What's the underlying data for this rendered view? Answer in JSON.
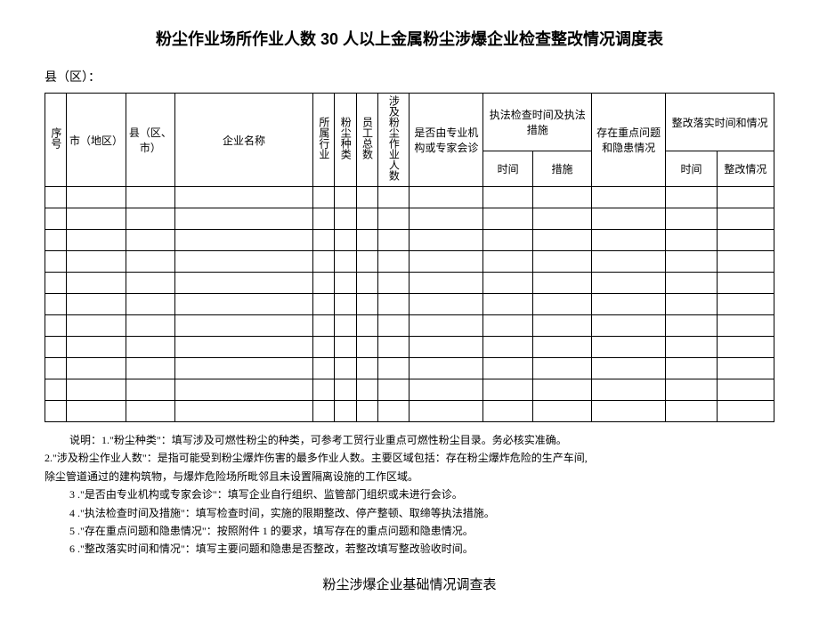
{
  "title": "粉尘作业场所作业人数 30 人以上金属粉尘涉爆企业检查整改情况调度表",
  "region_label": "县（区）：",
  "headers": {
    "seq": "序号",
    "city": "市（地区）",
    "county": "县（区、市）",
    "enterprise_name": "企业名称",
    "industry": "所属行业",
    "dust_type": "粉尘种类",
    "emp_total": "员工总数",
    "dust_workers": "涉及粉尘作业人数",
    "expert_consult": "是否由专业机构或专家会诊",
    "inspection_group": "执法检查时间及执法措施",
    "inspect_time": "时间",
    "inspect_measure": "措施",
    "key_issues": "存在重点问题和隐患情况",
    "rectify_group": "整改落实时间和情况",
    "rectify_time": "时间",
    "rectify_status": "整改情况"
  },
  "notes": {
    "intro": "说明：1.\"粉尘种类\"：填写涉及可燃性粉尘的种类，可参考工贸行业重点可燃性粉尘目录。务必核实准确。",
    "n2a": "2.\"涉及粉尘作业人数\"：是指可能受到粉尘爆炸伤害的最多作业人数。主要区域包括：存在粉尘爆炸危险的生产车间,",
    "n2b": "除尘管道通过的建构筑物，与爆炸危险场所毗邻且未设置隔离设施的工作区域。",
    "n3": "3 .\"是否由专业机构或专家会诊\"：填写企业自行组织、监管部门组织或未进行会诊。",
    "n4": "4 .\"执法检查时间及措施\"：填写检查时间，实施的限期整改、停产整顿、取缔等执法措施。",
    "n5": "5 .\"存在重点问题和隐患情况\"：按照附件 1 的要求，填写存在的重点问题和隐患情况。",
    "n6": "6 .\"整改落实时间和情况\"：填写主要问题和隐患是否整改，若整改填写整改验收时间。"
  },
  "subtitle": "粉尘涉爆企业基础情况调查表",
  "empty_rows": 11
}
